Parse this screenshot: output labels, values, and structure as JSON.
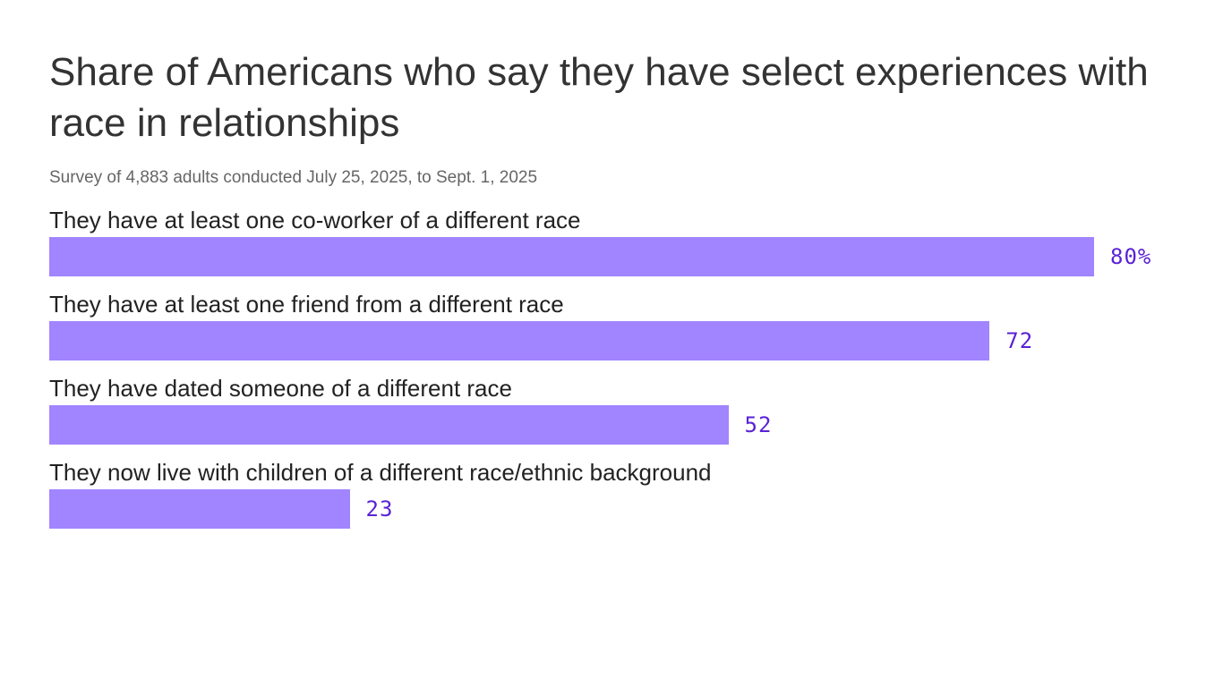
{
  "chart_data": {
    "type": "bar",
    "orientation": "horizontal",
    "title": "Share of Americans who say they have select experiences with race in relationships",
    "subtitle": "Survey of 4,883 adults conducted July 25, 2025, to Sept. 1, 2025",
    "categories": [
      "They have at least one co-worker of a different race",
      "They have at least one friend from a different race",
      "They have dated someone of a different race",
      "They now live with children of a different race/ethnic background"
    ],
    "values": [
      80,
      72,
      52,
      23
    ],
    "value_labels": [
      "80%",
      "72",
      "52",
      "23"
    ],
    "color": "#a184ff",
    "label_color": "#5a22d6"
  }
}
